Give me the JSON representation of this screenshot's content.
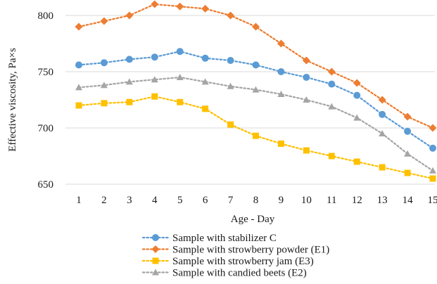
{
  "chart_data": {
    "type": "line",
    "xlabel": "Age - Day",
    "ylabel": "Effective viscosity, Pa×s",
    "ylim": [
      650,
      800
    ],
    "yticks": [
      650,
      700,
      750,
      800
    ],
    "categories": [
      "1",
      "2",
      "3",
      "4",
      "5",
      "6",
      "7",
      "8",
      "9",
      "10",
      "11",
      "12",
      "13",
      "14",
      "15"
    ],
    "grid": "horizontal",
    "legend_position": "bottom",
    "series": [
      {
        "name": "Sample with stabilizer C",
        "color": "#5B9BD5",
        "marker": "circle",
        "values": [
          756,
          758,
          761,
          763,
          768,
          762,
          760,
          756,
          750,
          745,
          739,
          729,
          712,
          697,
          682
        ]
      },
      {
        "name": "Sample with strowberry powder (E1)",
        "color": "#ED7D31",
        "marker": "diamond",
        "values": [
          790,
          795,
          800,
          810,
          808,
          806,
          800,
          790,
          775,
          760,
          750,
          740,
          725,
          710,
          700
        ]
      },
      {
        "name": "Sample with strowberry jam (E3)",
        "color": "#FFC000",
        "marker": "square",
        "values": [
          720,
          722,
          723,
          728,
          723,
          717,
          703,
          693,
          686,
          680,
          675,
          670,
          665,
          660,
          655
        ]
      },
      {
        "name": "Sample with candied beets (E2)",
        "color": "#A5A5A5",
        "marker": "triangle",
        "values": [
          736,
          738,
          741,
          743,
          745,
          741,
          737,
          734,
          730,
          725,
          719,
          709,
          695,
          677,
          662
        ]
      }
    ]
  }
}
